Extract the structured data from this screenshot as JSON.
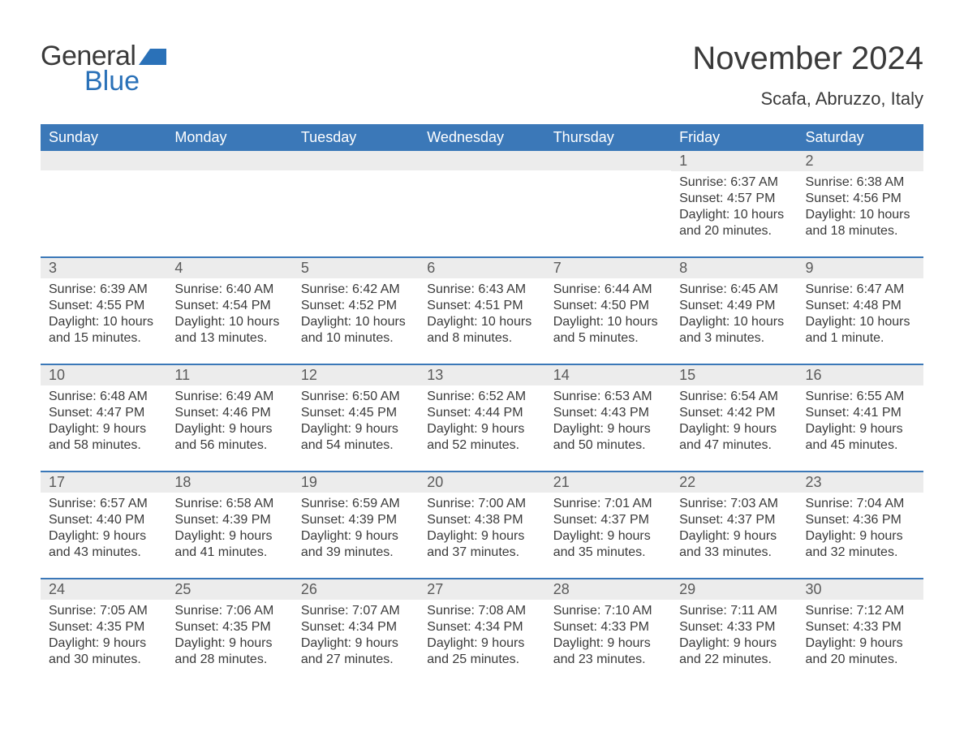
{
  "logo": {
    "general": "General",
    "blue": "Blue"
  },
  "title": "November 2024",
  "location": "Scafa, Abruzzo, Italy",
  "colors": {
    "header_bg": "#3b78b8",
    "header_text": "#ffffff",
    "daynum_bg": "#ececec",
    "text": "#3a3a3a",
    "accent_blue": "#2a71b8",
    "page_bg": "#ffffff"
  },
  "typography": {
    "title_fontsize": 40,
    "location_fontsize": 22,
    "header_fontsize": 18,
    "daynum_fontsize": 18,
    "detail_fontsize": 16
  },
  "columns": [
    "Sunday",
    "Monday",
    "Tuesday",
    "Wednesday",
    "Thursday",
    "Friday",
    "Saturday"
  ],
  "weeks": [
    [
      {
        "n": "",
        "sr": "",
        "ss": "",
        "dl": ""
      },
      {
        "n": "",
        "sr": "",
        "ss": "",
        "dl": ""
      },
      {
        "n": "",
        "sr": "",
        "ss": "",
        "dl": ""
      },
      {
        "n": "",
        "sr": "",
        "ss": "",
        "dl": ""
      },
      {
        "n": "",
        "sr": "",
        "ss": "",
        "dl": ""
      },
      {
        "n": "1",
        "sr": "Sunrise: 6:37 AM",
        "ss": "Sunset: 4:57 PM",
        "dl": "Daylight: 10 hours and 20 minutes."
      },
      {
        "n": "2",
        "sr": "Sunrise: 6:38 AM",
        "ss": "Sunset: 4:56 PM",
        "dl": "Daylight: 10 hours and 18 minutes."
      }
    ],
    [
      {
        "n": "3",
        "sr": "Sunrise: 6:39 AM",
        "ss": "Sunset: 4:55 PM",
        "dl": "Daylight: 10 hours and 15 minutes."
      },
      {
        "n": "4",
        "sr": "Sunrise: 6:40 AM",
        "ss": "Sunset: 4:54 PM",
        "dl": "Daylight: 10 hours and 13 minutes."
      },
      {
        "n": "5",
        "sr": "Sunrise: 6:42 AM",
        "ss": "Sunset: 4:52 PM",
        "dl": "Daylight: 10 hours and 10 minutes."
      },
      {
        "n": "6",
        "sr": "Sunrise: 6:43 AM",
        "ss": "Sunset: 4:51 PM",
        "dl": "Daylight: 10 hours and 8 minutes."
      },
      {
        "n": "7",
        "sr": "Sunrise: 6:44 AM",
        "ss": "Sunset: 4:50 PM",
        "dl": "Daylight: 10 hours and 5 minutes."
      },
      {
        "n": "8",
        "sr": "Sunrise: 6:45 AM",
        "ss": "Sunset: 4:49 PM",
        "dl": "Daylight: 10 hours and 3 minutes."
      },
      {
        "n": "9",
        "sr": "Sunrise: 6:47 AM",
        "ss": "Sunset: 4:48 PM",
        "dl": "Daylight: 10 hours and 1 minute."
      }
    ],
    [
      {
        "n": "10",
        "sr": "Sunrise: 6:48 AM",
        "ss": "Sunset: 4:47 PM",
        "dl": "Daylight: 9 hours and 58 minutes."
      },
      {
        "n": "11",
        "sr": "Sunrise: 6:49 AM",
        "ss": "Sunset: 4:46 PM",
        "dl": "Daylight: 9 hours and 56 minutes."
      },
      {
        "n": "12",
        "sr": "Sunrise: 6:50 AM",
        "ss": "Sunset: 4:45 PM",
        "dl": "Daylight: 9 hours and 54 minutes."
      },
      {
        "n": "13",
        "sr": "Sunrise: 6:52 AM",
        "ss": "Sunset: 4:44 PM",
        "dl": "Daylight: 9 hours and 52 minutes."
      },
      {
        "n": "14",
        "sr": "Sunrise: 6:53 AM",
        "ss": "Sunset: 4:43 PM",
        "dl": "Daylight: 9 hours and 50 minutes."
      },
      {
        "n": "15",
        "sr": "Sunrise: 6:54 AM",
        "ss": "Sunset: 4:42 PM",
        "dl": "Daylight: 9 hours and 47 minutes."
      },
      {
        "n": "16",
        "sr": "Sunrise: 6:55 AM",
        "ss": "Sunset: 4:41 PM",
        "dl": "Daylight: 9 hours and 45 minutes."
      }
    ],
    [
      {
        "n": "17",
        "sr": "Sunrise: 6:57 AM",
        "ss": "Sunset: 4:40 PM",
        "dl": "Daylight: 9 hours and 43 minutes."
      },
      {
        "n": "18",
        "sr": "Sunrise: 6:58 AM",
        "ss": "Sunset: 4:39 PM",
        "dl": "Daylight: 9 hours and 41 minutes."
      },
      {
        "n": "19",
        "sr": "Sunrise: 6:59 AM",
        "ss": "Sunset: 4:39 PM",
        "dl": "Daylight: 9 hours and 39 minutes."
      },
      {
        "n": "20",
        "sr": "Sunrise: 7:00 AM",
        "ss": "Sunset: 4:38 PM",
        "dl": "Daylight: 9 hours and 37 minutes."
      },
      {
        "n": "21",
        "sr": "Sunrise: 7:01 AM",
        "ss": "Sunset: 4:37 PM",
        "dl": "Daylight: 9 hours and 35 minutes."
      },
      {
        "n": "22",
        "sr": "Sunrise: 7:03 AM",
        "ss": "Sunset: 4:37 PM",
        "dl": "Daylight: 9 hours and 33 minutes."
      },
      {
        "n": "23",
        "sr": "Sunrise: 7:04 AM",
        "ss": "Sunset: 4:36 PM",
        "dl": "Daylight: 9 hours and 32 minutes."
      }
    ],
    [
      {
        "n": "24",
        "sr": "Sunrise: 7:05 AM",
        "ss": "Sunset: 4:35 PM",
        "dl": "Daylight: 9 hours and 30 minutes."
      },
      {
        "n": "25",
        "sr": "Sunrise: 7:06 AM",
        "ss": "Sunset: 4:35 PM",
        "dl": "Daylight: 9 hours and 28 minutes."
      },
      {
        "n": "26",
        "sr": "Sunrise: 7:07 AM",
        "ss": "Sunset: 4:34 PM",
        "dl": "Daylight: 9 hours and 27 minutes."
      },
      {
        "n": "27",
        "sr": "Sunrise: 7:08 AM",
        "ss": "Sunset: 4:34 PM",
        "dl": "Daylight: 9 hours and 25 minutes."
      },
      {
        "n": "28",
        "sr": "Sunrise: 7:10 AM",
        "ss": "Sunset: 4:33 PM",
        "dl": "Daylight: 9 hours and 23 minutes."
      },
      {
        "n": "29",
        "sr": "Sunrise: 7:11 AM",
        "ss": "Sunset: 4:33 PM",
        "dl": "Daylight: 9 hours and 22 minutes."
      },
      {
        "n": "30",
        "sr": "Sunrise: 7:12 AM",
        "ss": "Sunset: 4:33 PM",
        "dl": "Daylight: 9 hours and 20 minutes."
      }
    ]
  ]
}
